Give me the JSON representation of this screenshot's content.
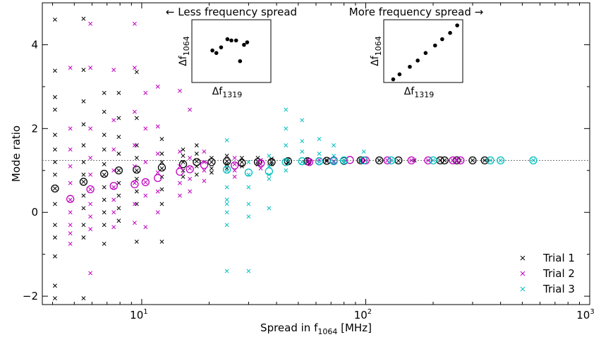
{
  "chart_data": {
    "type": "scatter",
    "xlabel": "Spread in f",
    "xlabel_sub": "1064",
    "xlabel_unit": " [MHz]",
    "ylabel": "Mode ratio",
    "xscale": "log",
    "xlim": [
      3.6,
      1000
    ],
    "ylim": [
      -2.2,
      5.0
    ],
    "reference_line_y": 1.24,
    "xticks": [
      {
        "value": 10,
        "base": "10",
        "exp": "1"
      },
      {
        "value": 100,
        "base": "10",
        "exp": "2"
      },
      {
        "value": 1000,
        "base": "10",
        "exp": "3"
      }
    ],
    "yticks": [
      {
        "value": 4,
        "label": "4"
      },
      {
        "value": 2,
        "label": "2"
      },
      {
        "value": 0,
        "label": "0"
      },
      {
        "value": -2,
        "label": "−2"
      }
    ],
    "legend_position": "bottom-right",
    "series": [
      {
        "name": "Trial 1",
        "color": "#000000",
        "x": [
          4.1,
          4.1,
          4.1,
          4.1,
          4.1,
          4.1,
          4.1,
          4.1,
          4.1,
          4.1,
          4.1,
          4.1,
          4.1,
          4.1,
          4.1,
          5.5,
          5.5,
          5.5,
          5.5,
          5.5,
          5.5,
          5.5,
          5.5,
          5.5,
          5.5,
          5.5,
          5.5,
          5.5,
          6.8,
          6.8,
          6.8,
          6.8,
          6.8,
          6.8,
          6.8,
          6.8,
          6.8,
          6.8,
          6.8,
          7.9,
          7.9,
          7.9,
          7.9,
          7.9,
          7.9,
          7.9,
          7.9,
          7.9,
          9.5,
          9.5,
          9.5,
          9.5,
          9.5,
          9.5,
          9.5,
          9.5,
          9.5,
          12.3,
          12.3,
          12.3,
          12.3,
          12.3,
          12.3,
          12.3,
          12.3,
          15.3,
          15.3,
          15.3,
          15.3,
          15.3,
          17.6,
          17.6,
          17.6,
          17.6,
          17.6,
          20.5,
          20.5,
          20.5,
          20.5,
          24.0,
          24.0,
          24.0,
          24.0,
          28.0,
          28.0,
          28.0,
          33.0,
          33.0,
          33.0,
          38.0,
          38.0,
          38.0,
          45.0,
          45.0,
          45.0,
          55.0,
          55.0,
          67.0,
          67.0,
          80.0,
          80.0,
          95.0,
          95.0,
          115.0,
          140.0,
          165.0,
          215.0,
          225.0,
          255.0,
          300.0,
          340.0
        ],
        "y": [
          4.6,
          3.38,
          2.75,
          2.45,
          1.85,
          1.5,
          1.2,
          0.9,
          0.57,
          0.2,
          -0.3,
          -0.6,
          -1.05,
          -1.75,
          -2.05,
          4.62,
          3.4,
          2.65,
          2.1,
          1.6,
          1.2,
          0.9,
          0.73,
          0.4,
          0.1,
          -0.3,
          -0.6,
          -2.05,
          2.85,
          2.4,
          1.85,
          1.5,
          1.15,
          0.9,
          0.6,
          0.3,
          0.0,
          -0.3,
          -0.75,
          2.85,
          2.25,
          1.8,
          1.4,
          1.0,
          0.7,
          0.4,
          0.1,
          -0.2,
          3.35,
          2.25,
          1.6,
          1.3,
          1.0,
          0.8,
          0.5,
          0.2,
          -0.7,
          1.75,
          1.4,
          1.2,
          1.05,
          0.85,
          0.55,
          0.2,
          -0.7,
          1.5,
          1.35,
          1.2,
          1.0,
          0.85,
          1.6,
          1.4,
          1.22,
          1.1,
          0.9,
          1.3,
          1.2,
          1.05,
          0.95,
          1.35,
          1.22,
          1.15,
          1.05,
          1.3,
          1.2,
          1.1,
          1.3,
          1.2,
          1.15,
          1.28,
          1.2,
          1.15,
          1.25,
          1.2,
          1.18,
          1.25,
          1.2,
          1.25,
          1.22,
          1.25,
          1.2,
          1.25,
          1.22,
          1.24,
          1.23,
          1.24,
          1.24,
          1.24,
          1.24,
          1.24,
          1.24
        ],
        "mean_x": [
          4.1,
          5.5,
          6.8,
          7.9,
          9.5,
          12.3,
          15.3,
          17.6,
          20.5,
          24.0,
          28.0,
          33.0,
          38.0,
          45.0,
          55.0,
          67.0,
          80.0,
          95.0,
          115.0,
          140.0,
          215.0,
          225.0,
          255.0,
          300.0,
          340.0
        ],
        "mean_y": [
          0.57,
          0.73,
          0.92,
          1.0,
          1.02,
          1.07,
          1.15,
          1.2,
          1.2,
          1.22,
          1.18,
          1.2,
          1.2,
          1.22,
          1.22,
          1.23,
          1.23,
          1.24,
          1.24,
          1.24,
          1.24,
          1.24,
          1.24,
          1.24,
          1.24
        ]
      },
      {
        "name": "Trial 2",
        "color": "#bf00bf",
        "x": [
          4.8,
          4.8,
          4.8,
          4.8,
          4.8,
          4.8,
          4.8,
          4.8,
          4.8,
          4.8,
          5.9,
          5.9,
          5.9,
          5.9,
          5.9,
          5.9,
          5.9,
          5.9,
          5.9,
          5.9,
          7.5,
          7.5,
          7.5,
          7.5,
          7.5,
          7.5,
          7.5,
          7.5,
          9.3,
          9.3,
          9.3,
          9.3,
          9.3,
          9.3,
          9.3,
          9.3,
          10.4,
          10.4,
          10.4,
          10.4,
          10.4,
          10.4,
          11.8,
          11.8,
          11.8,
          11.8,
          11.8,
          11.8,
          14.8,
          14.8,
          14.8,
          14.8,
          14.8,
          16.4,
          16.4,
          16.4,
          16.4,
          16.4,
          19.0,
          19.0,
          19.0,
          19.0,
          26.0,
          26.0,
          26.0,
          26.0,
          34.0,
          34.0,
          34.0,
          56.0,
          56.0,
          62.0,
          72.0,
          100.0,
          125.0,
          160.0,
          190.0,
          245.0,
          265.0
        ],
        "y": [
          3.45,
          2.0,
          1.5,
          1.1,
          0.7,
          0.3,
          0.0,
          -0.3,
          -0.5,
          -0.75,
          4.5,
          3.45,
          2.0,
          1.3,
          0.9,
          0.55,
          0.2,
          -0.1,
          -0.4,
          -1.45,
          3.4,
          2.2,
          1.5,
          1.0,
          0.6,
          0.3,
          0.0,
          -0.35,
          4.5,
          3.45,
          2.4,
          1.6,
          1.1,
          0.7,
          0.2,
          -0.25,
          2.85,
          2.0,
          1.2,
          0.72,
          0.4,
          -0.35,
          3.0,
          2.05,
          1.4,
          0.95,
          0.5,
          0.0,
          2.9,
          1.45,
          1.1,
          0.7,
          0.4,
          2.45,
          1.3,
          1.05,
          0.8,
          0.5,
          1.45,
          1.2,
          1.0,
          0.75,
          1.3,
          1.15,
          1.0,
          0.85,
          1.25,
          1.15,
          1.05,
          1.22,
          1.18,
          1.25,
          1.22,
          1.24,
          1.24,
          1.24,
          1.24,
          1.24,
          1.24
        ],
        "mean_x": [
          4.8,
          5.9,
          7.5,
          9.3,
          10.4,
          11.8,
          14.8,
          16.4,
          19.0,
          26.0,
          34.0,
          56.0,
          62.0,
          72.0,
          85.0,
          100.0,
          125.0,
          160.0,
          190.0,
          245.0,
          265.0
        ],
        "mean_y": [
          0.32,
          0.55,
          0.63,
          0.67,
          0.72,
          0.82,
          0.97,
          1.03,
          1.13,
          1.12,
          1.17,
          1.2,
          1.22,
          1.24,
          1.25,
          1.24,
          1.24,
          1.24,
          1.24,
          1.24,
          1.24
        ]
      },
      {
        "name": "Trial 3",
        "color": "#00bfbf",
        "x": [
          24.0,
          24.0,
          24.0,
          24.0,
          24.0,
          24.0,
          24.0,
          24.0,
          30.0,
          30.0,
          30.0,
          30.0,
          30.0,
          30.0,
          37.0,
          37.0,
          37.0,
          37.0,
          37.0,
          44.0,
          44.0,
          44.0,
          44.0,
          44.0,
          52.0,
          52.0,
          52.0,
          52.0,
          62.0,
          62.0,
          62.0,
          72.0,
          72.0,
          72.0,
          80.0,
          80.0,
          98.0,
          130.0,
          200.0,
          360.0,
          400.0,
          560.0
        ],
        "y": [
          1.72,
          1.0,
          0.6,
          0.3,
          0.2,
          0.0,
          -0.3,
          -1.4,
          1.2,
          0.9,
          0.6,
          0.2,
          -0.1,
          -1.4,
          1.35,
          1.1,
          0.9,
          0.8,
          0.1,
          2.45,
          2.0,
          1.6,
          1.25,
          1.0,
          2.2,
          1.7,
          1.45,
          1.2,
          1.75,
          1.4,
          1.2,
          1.6,
          1.35,
          1.2,
          1.25,
          1.2,
          1.45,
          1.24,
          1.24,
          1.24,
          1.24,
          1.24
        ],
        "mean_x": [
          24.0,
          30.0,
          37.0,
          44.0,
          52.0,
          62.0,
          72.0,
          80.0,
          98.0,
          130.0,
          200.0,
          360.0,
          400.0,
          560.0
        ],
        "mean_y": [
          1.02,
          0.95,
          0.98,
          1.2,
          1.22,
          1.22,
          1.22,
          1.24,
          1.24,
          1.24,
          1.24,
          1.24,
          1.24,
          1.24
        ]
      }
    ],
    "insets": [
      {
        "caption": "← Less frequency spread",
        "xlabel": "Δf",
        "xlabel_sub": "1319",
        "ylabel": "Δf",
        "ylabel_sub": "1064",
        "x": [
          0.26,
          0.31,
          0.37,
          0.45,
          0.5,
          0.56,
          0.61,
          0.66,
          0.7
        ],
        "y": [
          0.51,
          0.47,
          0.56,
          0.69,
          0.67,
          0.67,
          0.34,
          0.6,
          0.64
        ]
      },
      {
        "caption": "More frequency spread →",
        "xlabel": "Δf",
        "xlabel_sub": "1319",
        "ylabel": "Δf",
        "ylabel_sub": "1064",
        "x": [
          0.12,
          0.2,
          0.33,
          0.43,
          0.53,
          0.65,
          0.74,
          0.84,
          0.93
        ],
        "y": [
          0.05,
          0.13,
          0.25,
          0.35,
          0.47,
          0.59,
          0.69,
          0.79,
          0.91
        ]
      }
    ]
  }
}
